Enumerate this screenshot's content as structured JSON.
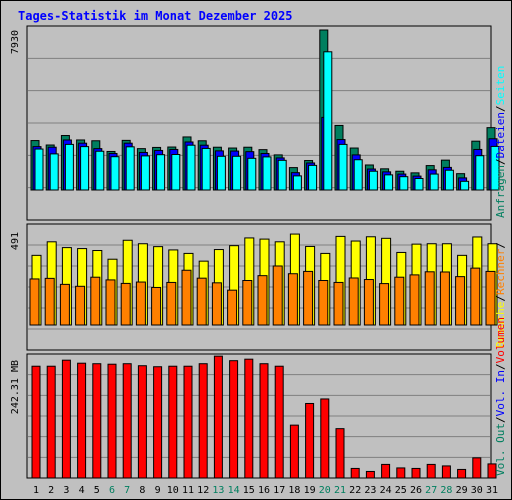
{
  "title": "Tages-Statistik im Monat Dezember 2025",
  "colors": {
    "background": "#c0c0c0",
    "title": "#0000ff",
    "anfragen": "#007f5f",
    "dateien": "#0000ff",
    "seiten": "#00ffff",
    "besuche": "#ffff00",
    "rechner": "#ff8000",
    "volumen": "#ff0000",
    "weekday_label": "#000000",
    "weekend_label": "#007f5f"
  },
  "right_labels": {
    "panel1": [
      {
        "text": "Anfragen",
        "color": "#007f5f"
      },
      {
        "text": "/",
        "color": "#000000"
      },
      {
        "text": "Dateien",
        "color": "#0000ff"
      },
      {
        "text": "/",
        "color": "#000000"
      },
      {
        "text": "Seiten",
        "color": "#00ffff"
      }
    ],
    "panel2": [
      {
        "text": "Besuche",
        "color": "#ffff00"
      },
      {
        "text": "/",
        "color": "#000000"
      },
      {
        "text": "Rechner",
        "color": "#ff8000"
      },
      {
        "text": "/",
        "color": "#000000"
      }
    ],
    "panel3": [
      {
        "text": "Vol. Out",
        "color": "#007f5f"
      },
      {
        "text": "/",
        "color": "#000000"
      },
      {
        "text": "Vol. In",
        "color": "#0000ff"
      },
      {
        "text": "/",
        "color": "#000000"
      },
      {
        "text": "Volumen",
        "color": "#ff0000"
      }
    ]
  },
  "chart_data": {
    "type": "bar",
    "title": "Tages-Statistik im Monat Dezember 2025",
    "categories": [
      "1",
      "2",
      "3",
      "4",
      "5",
      "6",
      "7",
      "8",
      "9",
      "10",
      "11",
      "12",
      "13",
      "14",
      "15",
      "16",
      "17",
      "18",
      "19",
      "20",
      "21",
      "22",
      "23",
      "24",
      "25",
      "26",
      "27",
      "28",
      "29",
      "30",
      "31"
    ],
    "weekend_days": [
      "6",
      "7",
      "13",
      "14",
      "20",
      "21",
      "27",
      "28"
    ],
    "panels": [
      {
        "id": "hits",
        "max_label": "7930",
        "ylim": [
          0,
          7930
        ],
        "series": [
          {
            "name": "Anfragen",
            "values": [
              2450,
              2230,
              2700,
              2480,
              2440,
              1910,
              2460,
              2050,
              2110,
              2130,
              2630,
              2440,
              2120,
              2080,
              2120,
              2000,
              1740,
              1110,
              1460,
              7930,
              3200,
              2080,
              1240,
              1050,
              930,
              850,
              1210,
              1480,
              810,
              2420,
              3090
            ]
          },
          {
            "name": "Dateien",
            "values": [
              2150,
              2120,
              2480,
              2320,
              2050,
              1810,
              2320,
              1860,
              1960,
              2010,
              2380,
              2220,
              1940,
              1930,
              1900,
              1810,
              1590,
              860,
              1340,
              3600,
              2500,
              1740,
              1040,
              900,
              790,
              690,
              1000,
              1120,
              600,
              2010,
              2540
            ]
          },
          {
            "name": "Seiten",
            "values": [
              2030,
              1790,
              2260,
              2150,
              1920,
              1650,
              2140,
              1690,
              1750,
              1760,
              2220,
              2060,
              1670,
              1670,
              1570,
              1640,
              1470,
              700,
              1220,
              6850,
              2260,
              1500,
              930,
              750,
              660,
              570,
              790,
              980,
              430,
              1700,
              2160
            ]
          }
        ]
      },
      {
        "id": "visits",
        "max_label": "491",
        "ylim": [
          0,
          491
        ],
        "series": [
          {
            "name": "Besuche",
            "values": [
              360,
              430,
              400,
              395,
              385,
              340,
              438,
              420,
              405,
              388,
              370,
              330,
              390,
              410,
              450,
              444,
              430,
              470,
              406,
              370,
              458,
              434,
              456,
              448,
              375,
              418,
              420,
              420,
              360,
              455,
              420
            ]
          },
          {
            "name": "Rechner",
            "values": [
              238,
              241,
              210,
              200,
              247,
              233,
              215,
              222,
              194,
              220,
              283,
              242,
              218,
              180,
              230,
              255,
              305,
              265,
              277,
              230,
              220,
              243,
              235,
              214,
              247,
              259,
              275,
              274,
              250,
              294,
              277
            ]
          }
        ]
      },
      {
        "id": "volume",
        "max_label": "242.31 MB",
        "ylim": [
          0,
          242.31
        ],
        "series": [
          {
            "name": "Volumen",
            "values": [
              222,
              222,
              234,
              228,
              227,
              226,
              227,
              223,
              221,
              222,
              222,
              227,
              242,
              233,
              236,
              227,
              222,
              105,
              148,
              157,
              98,
              19,
              13,
              27,
              20,
              19,
              27,
              24,
              17,
              40,
              28
            ]
          }
        ]
      }
    ]
  }
}
